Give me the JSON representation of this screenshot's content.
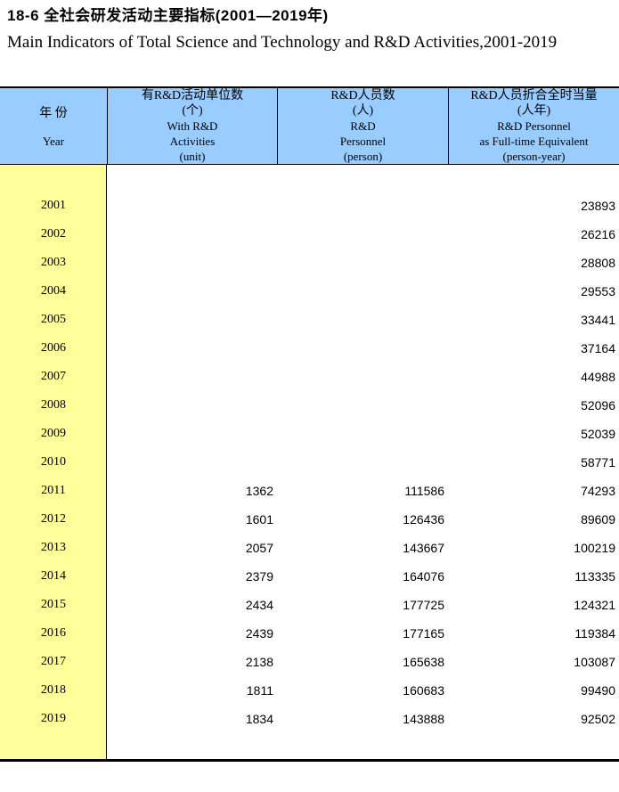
{
  "title_cn": "18-6  全社会研发活动主要指标(2001—2019年)",
  "title_en": "Main Indicators of Total Science and Technology and R&D Activities,2001-2019",
  "colors": {
    "header_bg": "#99CCFF",
    "year_column_bg": "#FFFF99",
    "border": "#000000",
    "text": "#000000"
  },
  "table": {
    "header": {
      "year_cn": "年 份",
      "year_en": "Year",
      "columns": [
        {
          "lines": [
            "有R&D活动单位数",
            "(个)",
            "With R&D",
            "Activities",
            "(unit)"
          ]
        },
        {
          "lines": [
            "R&D人员数",
            "(人)",
            "R&D",
            "Personnel",
            "(person)"
          ]
        },
        {
          "lines": [
            "R&D人员折合全时当量",
            "(人年)",
            "R&D Personnel",
            "as Full-time Equivalent",
            "(person-year)"
          ]
        }
      ]
    },
    "rows": [
      {
        "year": "2001",
        "units": "",
        "personnel": "",
        "fte": "23893"
      },
      {
        "year": "2002",
        "units": "",
        "personnel": "",
        "fte": "26216"
      },
      {
        "year": "2003",
        "units": "",
        "personnel": "",
        "fte": "28808"
      },
      {
        "year": "2004",
        "units": "",
        "personnel": "",
        "fte": "29553"
      },
      {
        "year": "2005",
        "units": "",
        "personnel": "",
        "fte": "33441"
      },
      {
        "year": "2006",
        "units": "",
        "personnel": "",
        "fte": "37164"
      },
      {
        "year": "2007",
        "units": "",
        "personnel": "",
        "fte": "44988"
      },
      {
        "year": "2008",
        "units": "",
        "personnel": "",
        "fte": "52096"
      },
      {
        "year": "2009",
        "units": "",
        "personnel": "",
        "fte": "52039"
      },
      {
        "year": "2010",
        "units": "",
        "personnel": "",
        "fte": "58771"
      },
      {
        "year": "2011",
        "units": "1362",
        "personnel": "111586",
        "fte": "74293"
      },
      {
        "year": "2012",
        "units": "1601",
        "personnel": "126436",
        "fte": "89609"
      },
      {
        "year": "2013",
        "units": "2057",
        "personnel": "143667",
        "fte": "100219"
      },
      {
        "year": "2014",
        "units": "2379",
        "personnel": "164076",
        "fte": "113335"
      },
      {
        "year": "2015",
        "units": "2434",
        "personnel": "177725",
        "fte": "124321"
      },
      {
        "year": "2016",
        "units": "2439",
        "personnel": "177165",
        "fte": "119384"
      },
      {
        "year": "2017",
        "units": "2138",
        "personnel": "165638",
        "fte": "103087"
      },
      {
        "year": "2018",
        "units": "1811",
        "personnel": "160683",
        "fte": "99490"
      },
      {
        "year": "2019",
        "units": "1834",
        "personnel": "143888",
        "fte": "92502"
      }
    ]
  }
}
